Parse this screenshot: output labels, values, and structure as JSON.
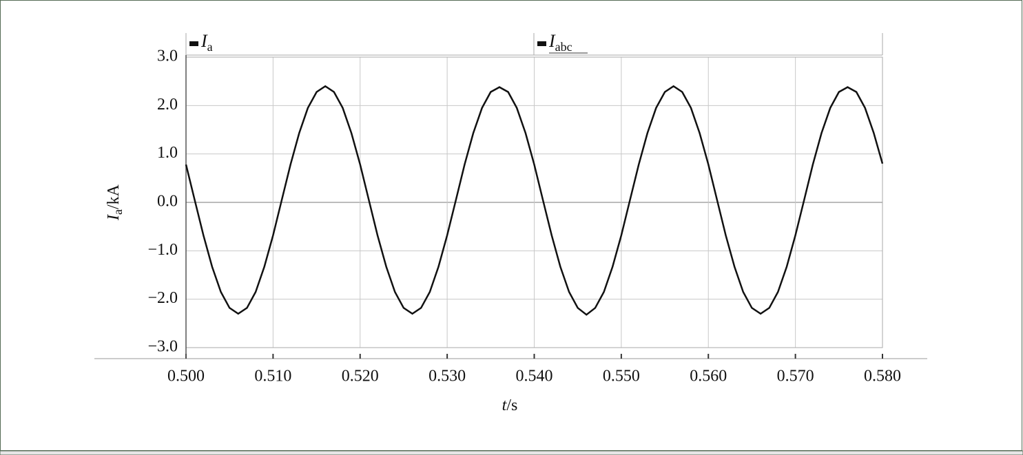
{
  "chart_data": {
    "type": "line",
    "legend": [
      {
        "symbol": "I",
        "sub": "a"
      },
      {
        "symbol": "I",
        "sub": "abc"
      }
    ],
    "ylabel": {
      "symbol": "I",
      "sub": "a",
      "unit": "/kA"
    },
    "xlabel": {
      "symbol": "t",
      "unit": "/s"
    },
    "x": [
      0.5,
      0.501,
      0.502,
      0.503,
      0.504,
      0.505,
      0.506,
      0.507,
      0.508,
      0.509,
      0.51,
      0.511,
      0.512,
      0.513,
      0.514,
      0.515,
      0.516,
      0.517,
      0.518,
      0.519,
      0.52,
      0.521,
      0.522,
      0.523,
      0.524,
      0.525,
      0.526,
      0.527,
      0.528,
      0.529,
      0.53,
      0.531,
      0.532,
      0.533,
      0.534,
      0.535,
      0.536,
      0.537,
      0.538,
      0.539,
      0.54,
      0.541,
      0.542,
      0.543,
      0.544,
      0.545,
      0.546,
      0.547,
      0.548,
      0.549,
      0.55,
      0.551,
      0.552,
      0.553,
      0.554,
      0.555,
      0.556,
      0.557,
      0.558,
      0.559,
      0.56,
      0.561,
      0.562,
      0.563,
      0.564,
      0.565,
      0.566,
      0.567,
      0.568,
      0.569,
      0.57,
      0.571,
      0.572,
      0.573,
      0.574,
      0.575,
      0.576,
      0.577,
      0.578,
      0.579,
      0.58
    ],
    "series": [
      {
        "color": "#111111",
        "values": [
          0.78,
          0.05,
          -0.68,
          -1.33,
          -1.85,
          -2.18,
          -2.3,
          -2.18,
          -1.85,
          -1.33,
          -0.68,
          0.05,
          0.78,
          1.43,
          1.95,
          2.28,
          2.4,
          2.28,
          1.95,
          1.43,
          0.78,
          0.05,
          -0.68,
          -1.33,
          -1.85,
          -2.18,
          -2.3,
          -2.18,
          -1.85,
          -1.33,
          -0.68,
          0.05,
          0.78,
          1.43,
          1.95,
          2.28,
          2.38,
          2.28,
          1.95,
          1.43,
          0.78,
          0.05,
          -0.68,
          -1.33,
          -1.85,
          -2.18,
          -2.32,
          -2.18,
          -1.85,
          -1.33,
          -0.68,
          0.05,
          0.78,
          1.43,
          1.95,
          2.28,
          2.4,
          2.28,
          1.95,
          1.43,
          0.78,
          0.05,
          -0.68,
          -1.33,
          -1.85,
          -2.18,
          -2.3,
          -2.18,
          -1.85,
          -1.33,
          -0.68,
          0.05,
          0.78,
          1.43,
          1.95,
          2.28,
          2.38,
          2.28,
          1.95,
          1.43,
          0.8
        ]
      }
    ],
    "xlim": [
      0.5,
      0.58
    ],
    "xticks": [
      {
        "value": 0.5,
        "label": "0.500"
      },
      {
        "value": 0.51,
        "label": "0.510"
      },
      {
        "value": 0.52,
        "label": "0.520"
      },
      {
        "value": 0.53,
        "label": "0.530"
      },
      {
        "value": 0.54,
        "label": "0.540"
      },
      {
        "value": 0.55,
        "label": "0.550"
      },
      {
        "value": 0.56,
        "label": "0.560"
      },
      {
        "value": 0.57,
        "label": "0.570"
      },
      {
        "value": 0.58,
        "label": "0.580"
      }
    ],
    "ylim": [
      -3,
      3
    ],
    "yticks": [
      {
        "value": 3,
        "label": "3.0"
      },
      {
        "value": 2,
        "label": "2.0"
      },
      {
        "value": 1,
        "label": "1.0"
      },
      {
        "value": 0,
        "label": "0.0"
      },
      {
        "value": -1,
        "label": "−1.0"
      },
      {
        "value": -2,
        "label": "−2.0"
      },
      {
        "value": -3,
        "label": "−3.0"
      }
    ],
    "grid": true
  }
}
